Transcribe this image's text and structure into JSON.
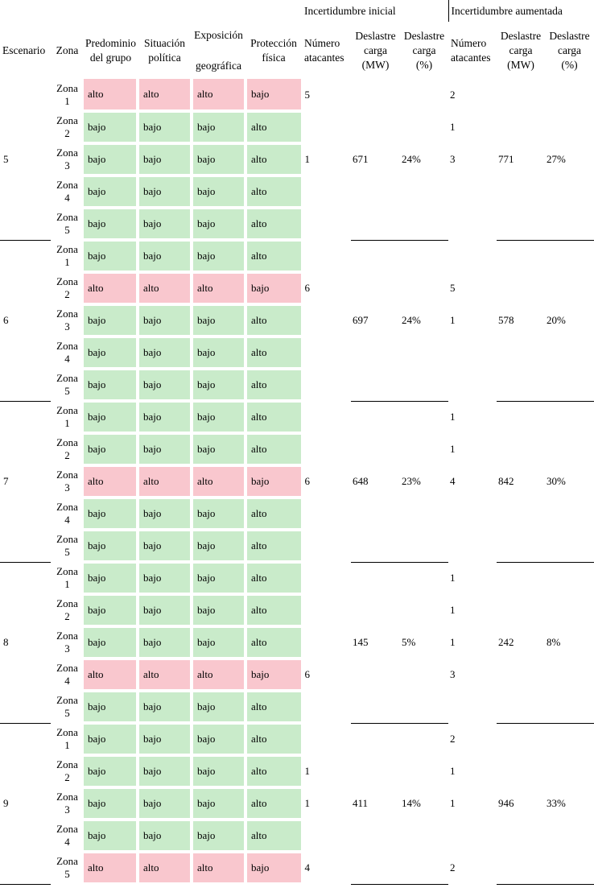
{
  "table": {
    "groups": {
      "initial": "Incertidumbre inicial",
      "augmented": "Incertidumbre aumentada"
    },
    "columns": {
      "escenario": "Escenario",
      "zona": "Zona",
      "predominio_l1": "Predominio",
      "predominio_l2": "del grupo",
      "situacion_l1": "Situación",
      "situacion_l2": "política",
      "exposicion_l1": "Exposición",
      "exposicion_l2": "geográfica",
      "proteccion_l1": "Protección",
      "proteccion_l2": "física",
      "atacantes_l1": "Número",
      "atacantes_l2": "atacantes",
      "deslastre_l1": "Deslastre",
      "deslastre_l2": "carga",
      "deslastre_mw_l3": "(MW)",
      "deslastre_pct_l3": "(%)"
    },
    "risk_colors": {
      "alto": "#f9c7ce",
      "bajo": "#c9ebca"
    },
    "scenarios": [
      {
        "label": "5",
        "zones": [
          {
            "zona": "Zona 1",
            "risk": "alto",
            "factors": [
              "alto",
              "alto",
              "alto",
              "bajo"
            ],
            "at1": "5",
            "mw1": "",
            "pc1": "",
            "at2": "2",
            "mw2": "",
            "pc2": ""
          },
          {
            "zona": "Zona 2",
            "risk": "bajo",
            "factors": [
              "bajo",
              "bajo",
              "bajo",
              "alto"
            ],
            "at1": "",
            "mw1": "",
            "pc1": "",
            "at2": "1",
            "mw2": "",
            "pc2": ""
          },
          {
            "zona": "Zona 3",
            "risk": "bajo",
            "factors": [
              "bajo",
              "bajo",
              "bajo",
              "alto"
            ],
            "at1": "1",
            "mw1": "671",
            "pc1": "24%",
            "at2": "3",
            "mw2": "771",
            "pc2": "27%"
          },
          {
            "zona": "Zona 4",
            "risk": "bajo",
            "factors": [
              "bajo",
              "bajo",
              "bajo",
              "alto"
            ],
            "at1": "",
            "mw1": "",
            "pc1": "",
            "at2": "",
            "mw2": "",
            "pc2": ""
          },
          {
            "zona": "Zona 5",
            "risk": "bajo",
            "factors": [
              "bajo",
              "bajo",
              "bajo",
              "alto"
            ],
            "at1": "",
            "mw1": "",
            "pc1": "",
            "at2": "",
            "mw2": "",
            "pc2": ""
          }
        ]
      },
      {
        "label": "6",
        "zones": [
          {
            "zona": "Zona 1",
            "risk": "bajo",
            "factors": [
              "bajo",
              "bajo",
              "bajo",
              "alto"
            ],
            "at1": "",
            "mw1": "",
            "pc1": "",
            "at2": "",
            "mw2": "",
            "pc2": ""
          },
          {
            "zona": "Zona 2",
            "risk": "alto",
            "factors": [
              "alto",
              "alto",
              "alto",
              "bajo"
            ],
            "at1": "6",
            "mw1": "",
            "pc1": "",
            "at2": "5",
            "mw2": "",
            "pc2": ""
          },
          {
            "zona": "Zona 3",
            "risk": "bajo",
            "factors": [
              "bajo",
              "bajo",
              "bajo",
              "alto"
            ],
            "at1": "",
            "mw1": "697",
            "pc1": "24%",
            "at2": "1",
            "mw2": "578",
            "pc2": "20%"
          },
          {
            "zona": "Zona 4",
            "risk": "bajo",
            "factors": [
              "bajo",
              "bajo",
              "bajo",
              "alto"
            ],
            "at1": "",
            "mw1": "",
            "pc1": "",
            "at2": "",
            "mw2": "",
            "pc2": ""
          },
          {
            "zona": "Zona 5",
            "risk": "bajo",
            "factors": [
              "bajo",
              "bajo",
              "bajo",
              "alto"
            ],
            "at1": "",
            "mw1": "",
            "pc1": "",
            "at2": "",
            "mw2": "",
            "pc2": ""
          }
        ]
      },
      {
        "label": "7",
        "zones": [
          {
            "zona": "Zona 1",
            "risk": "bajo",
            "factors": [
              "bajo",
              "bajo",
              "bajo",
              "alto"
            ],
            "at1": "",
            "mw1": "",
            "pc1": "",
            "at2": "1",
            "mw2": "",
            "pc2": ""
          },
          {
            "zona": "Zona 2",
            "risk": "bajo",
            "factors": [
              "bajo",
              "bajo",
              "bajo",
              "alto"
            ],
            "at1": "",
            "mw1": "",
            "pc1": "",
            "at2": "1",
            "mw2": "",
            "pc2": ""
          },
          {
            "zona": "Zona 3",
            "risk": "alto",
            "factors": [
              "alto",
              "alto",
              "alto",
              "bajo"
            ],
            "at1": "6",
            "mw1": "648",
            "pc1": "23%",
            "at2": "4",
            "mw2": "842",
            "pc2": "30%"
          },
          {
            "zona": "Zona 4",
            "risk": "bajo",
            "factors": [
              "bajo",
              "bajo",
              "bajo",
              "alto"
            ],
            "at1": "",
            "mw1": "",
            "pc1": "",
            "at2": "",
            "mw2": "",
            "pc2": ""
          },
          {
            "zona": "Zona 5",
            "risk": "bajo",
            "factors": [
              "bajo",
              "bajo",
              "bajo",
              "alto"
            ],
            "at1": "",
            "mw1": "",
            "pc1": "",
            "at2": "",
            "mw2": "",
            "pc2": ""
          }
        ]
      },
      {
        "label": "8",
        "zones": [
          {
            "zona": "Zona 1",
            "risk": "bajo",
            "factors": [
              "bajo",
              "bajo",
              "bajo",
              "alto"
            ],
            "at1": "",
            "mw1": "",
            "pc1": "",
            "at2": "1",
            "mw2": "",
            "pc2": ""
          },
          {
            "zona": "Zona 2",
            "risk": "bajo",
            "factors": [
              "bajo",
              "bajo",
              "bajo",
              "alto"
            ],
            "at1": "",
            "mw1": "",
            "pc1": "",
            "at2": "1",
            "mw2": "",
            "pc2": ""
          },
          {
            "zona": "Zona 3",
            "risk": "bajo",
            "factors": [
              "bajo",
              "bajo",
              "bajo",
              "alto"
            ],
            "at1": "",
            "mw1": "145",
            "pc1": "5%",
            "at2": "1",
            "mw2": "242",
            "pc2": "8%"
          },
          {
            "zona": "Zona 4",
            "risk": "alto",
            "factors": [
              "alto",
              "alto",
              "alto",
              "bajo"
            ],
            "at1": "6",
            "mw1": "",
            "pc1": "",
            "at2": "3",
            "mw2": "",
            "pc2": ""
          },
          {
            "zona": "Zona 5",
            "risk": "bajo",
            "factors": [
              "bajo",
              "bajo",
              "bajo",
              "alto"
            ],
            "at1": "",
            "mw1": "",
            "pc1": "",
            "at2": "",
            "mw2": "",
            "pc2": ""
          }
        ]
      },
      {
        "label": "9",
        "zones": [
          {
            "zona": "Zona 1",
            "risk": "bajo",
            "factors": [
              "bajo",
              "bajo",
              "bajo",
              "alto"
            ],
            "at1": "",
            "mw1": "",
            "pc1": "",
            "at2": "2",
            "mw2": "",
            "pc2": ""
          },
          {
            "zona": "Zona 2",
            "risk": "bajo",
            "factors": [
              "bajo",
              "bajo",
              "bajo",
              "alto"
            ],
            "at1": "1",
            "mw1": "",
            "pc1": "",
            "at2": "1",
            "mw2": "",
            "pc2": ""
          },
          {
            "zona": "Zona 3",
            "risk": "bajo",
            "factors": [
              "bajo",
              "bajo",
              "bajo",
              "alto"
            ],
            "at1": "1",
            "mw1": "411",
            "pc1": "14%",
            "at2": "1",
            "mw2": "946",
            "pc2": "33%"
          },
          {
            "zona": "Zona 4",
            "risk": "bajo",
            "factors": [
              "bajo",
              "bajo",
              "bajo",
              "alto"
            ],
            "at1": "",
            "mw1": "",
            "pc1": "",
            "at2": "",
            "mw2": "",
            "pc2": ""
          },
          {
            "zona": "Zona 5",
            "risk": "alto",
            "factors": [
              "alto",
              "alto",
              "alto",
              "bajo"
            ],
            "at1": "4",
            "mw1": "",
            "pc1": "",
            "at2": "2",
            "mw2": "",
            "pc2": ""
          }
        ]
      }
    ]
  }
}
